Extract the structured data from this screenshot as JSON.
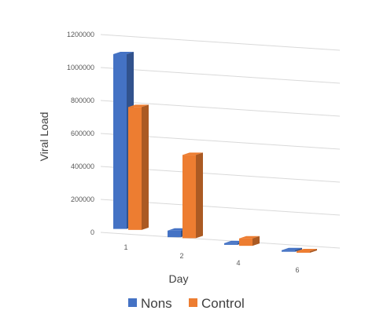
{
  "chart_data": {
    "type": "bar",
    "style": "3d-clustered-column",
    "categories": [
      "1",
      "2",
      "4",
      "6"
    ],
    "series": [
      {
        "name": "Nons",
        "values": [
          1060000,
          40000,
          10000,
          0
        ],
        "color": "#4472C4"
      },
      {
        "name": "Control",
        "values": [
          745000,
          505000,
          45000,
          0
        ],
        "color": "#ED7D31"
      }
    ],
    "y_ticks": [
      "0",
      "200000",
      "400000",
      "600000",
      "800000",
      "1000000",
      "1200000"
    ],
    "ylim": [
      0,
      1200000
    ],
    "xlabel": "Day",
    "ylabel": "Viral Load",
    "grid": true,
    "legend_position": "bottom"
  }
}
